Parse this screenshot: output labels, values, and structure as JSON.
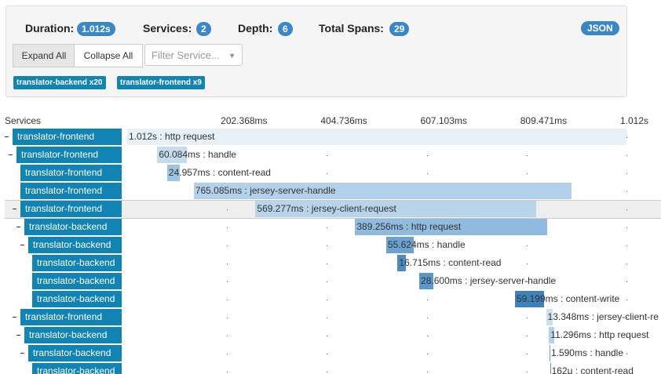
{
  "header": {
    "duration_label": "Duration:",
    "duration": "1.012s",
    "services_label": "Services:",
    "services": "2",
    "depth_label": "Depth:",
    "depth": "6",
    "total_spans_label": "Total Spans:",
    "total_spans": "29",
    "json_button": "JSON"
  },
  "controls": {
    "expand_all": "Expand All",
    "collapse_all": "Collapse All",
    "filter_placeholder": "Filter Service..."
  },
  "service_tags": [
    "translator-backend x20",
    "translator-frontend x9"
  ],
  "timeline": {
    "services_label": "Services",
    "xlim": [
      0,
      1012
    ],
    "ticks": [
      {
        "value": 202.368,
        "label": "202.368ms"
      },
      {
        "value": 404.736,
        "label": "404.736ms"
      },
      {
        "value": 607.103,
        "label": "607.103ms"
      },
      {
        "value": 809.471,
        "label": "809.471ms"
      },
      {
        "value": 1012,
        "label": "1.012s"
      }
    ]
  },
  "spans": [
    {
      "service": "translator-frontend",
      "depth": 0,
      "collapsible": true,
      "start": 0,
      "duration": 1012,
      "label": "1.012s : http request",
      "color": "#e8f1f8"
    },
    {
      "service": "translator-frontend",
      "depth": 1,
      "collapsible": true,
      "start": 61,
      "duration": 60.084,
      "label": "60.084ms : handle",
      "color": "#c6dcee"
    },
    {
      "service": "translator-frontend",
      "depth": 2,
      "collapsible": false,
      "start": 81,
      "duration": 24.957,
      "label": "24.957ms : content-read",
      "color": "#9ec4e2"
    },
    {
      "service": "translator-frontend",
      "depth": 2,
      "collapsible": false,
      "start": 135,
      "duration": 765.085,
      "label": "765.085ms : jersey-server-handle",
      "color": "#b3d1ea"
    },
    {
      "service": "translator-frontend",
      "depth": 2,
      "collapsible": true,
      "start": 260,
      "duration": 569.277,
      "label": "569.277ms : jersey-client-request",
      "color": "#b8d4eb",
      "highlighted": true
    },
    {
      "service": "translator-backend",
      "depth": 3,
      "collapsible": true,
      "start": 462,
      "duration": 389.256,
      "label": "389.256ms : http request",
      "color": "#90bade"
    },
    {
      "service": "translator-backend",
      "depth": 4,
      "collapsible": true,
      "start": 525,
      "duration": 55.624,
      "label": "55.624ms : handle",
      "color": "#6aa3d2"
    },
    {
      "service": "translator-backend",
      "depth": 5,
      "collapsible": false,
      "start": 548,
      "duration": 16.715,
      "label": "16.715ms : content-read",
      "color": "#4a8cc3"
    },
    {
      "service": "translator-backend",
      "depth": 5,
      "collapsible": false,
      "start": 592,
      "duration": 28.6,
      "label": "28.600ms : jersey-server-handle",
      "color": "#5a97ca"
    },
    {
      "service": "translator-backend",
      "depth": 5,
      "collapsible": false,
      "start": 786,
      "duration": 59.199,
      "label": "59.199ms : content-write",
      "color": "#3f81bb"
    },
    {
      "service": "translator-frontend",
      "depth": 2,
      "collapsible": true,
      "start": 849,
      "duration": 13.348,
      "label": "13.348ms : jersey-client-re",
      "color": "#cde0f0"
    },
    {
      "service": "translator-backend",
      "depth": 3,
      "collapsible": true,
      "start": 855,
      "duration": 11.296,
      "label": "11.296ms : http request",
      "color": "#b3d1ea"
    },
    {
      "service": "translator-backend",
      "depth": 4,
      "collapsible": true,
      "start": 856,
      "duration": 1.59,
      "label": "1.590ms : handle",
      "color": "#6aa3d2"
    },
    {
      "service": "translator-backend",
      "depth": 5,
      "collapsible": false,
      "start": 857,
      "duration": 0.162,
      "label": "162μ : content-read",
      "color": "#5a97ca"
    }
  ]
}
